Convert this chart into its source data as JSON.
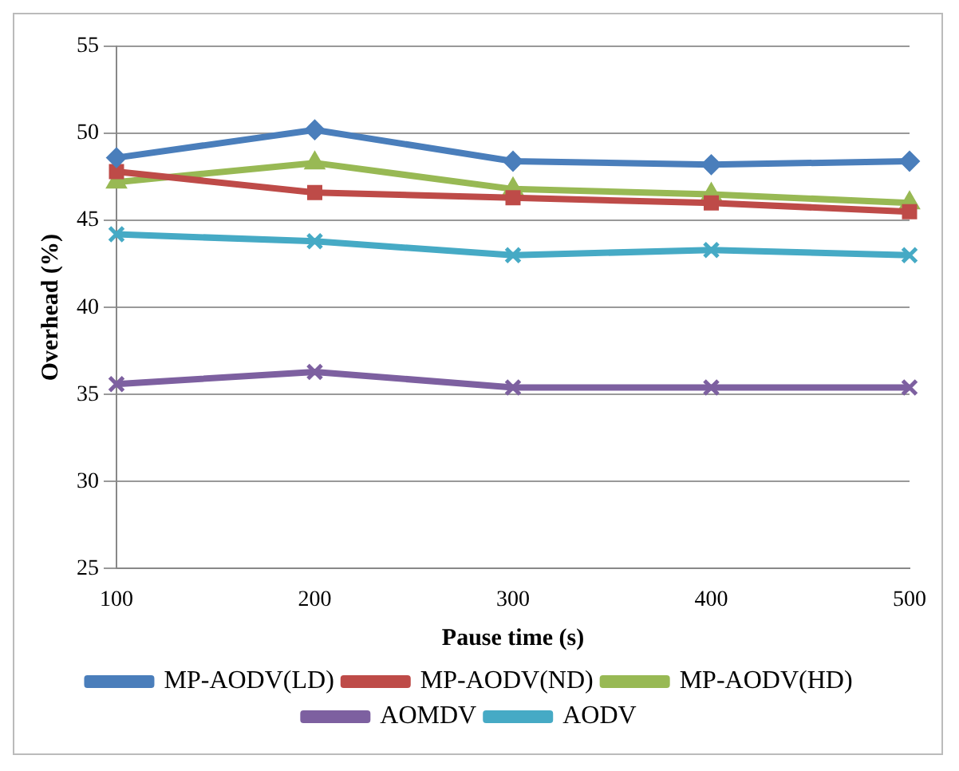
{
  "chart_data": {
    "type": "line",
    "xlabel": "Pause time (s)",
    "ylabel": "Overhead (%)",
    "categories": [
      "100",
      "200",
      "300",
      "400",
      "500"
    ],
    "ylim": [
      25,
      55
    ],
    "yticks": [
      25,
      30,
      35,
      40,
      45,
      50,
      55
    ],
    "grid": "y",
    "legend": "bottom",
    "series": [
      {
        "name": "MP-AODV(LD)",
        "color": "#4a7ebb",
        "marker": "diamond",
        "values": [
          48.6,
          50.2,
          48.4,
          48.2,
          48.4
        ]
      },
      {
        "name": "MP-AODV(ND)",
        "color": "#be4b48",
        "marker": "square",
        "values": [
          47.8,
          46.6,
          46.3,
          46.0,
          45.5
        ]
      },
      {
        "name": "MP-AODV(HD)",
        "color": "#98b954",
        "marker": "triangle",
        "values": [
          47.2,
          48.3,
          46.8,
          46.5,
          46.0
        ]
      },
      {
        "name": "AOMDV",
        "color": "#7d60a0",
        "marker": "cross",
        "values": [
          35.6,
          36.3,
          35.4,
          35.4,
          35.4
        ]
      },
      {
        "name": "AODV",
        "color": "#46aac5",
        "marker": "cross",
        "values": [
          44.2,
          43.8,
          43.0,
          43.3,
          43.0
        ]
      }
    ]
  }
}
